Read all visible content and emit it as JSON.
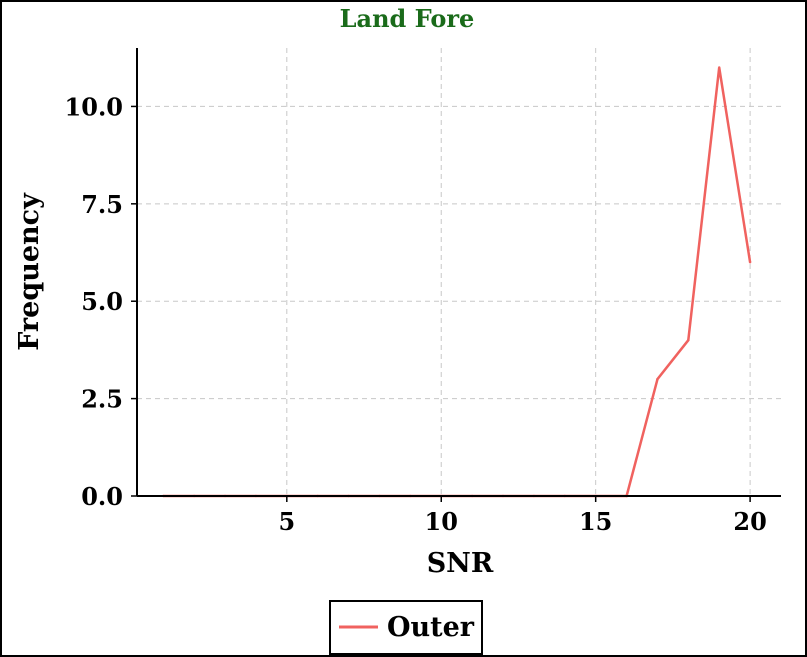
{
  "chart_data": {
    "type": "line",
    "title": "Land Fore",
    "xlabel": "SNR",
    "ylabel": "Frequency",
    "x": [
      1,
      2,
      3,
      4,
      5,
      6,
      7,
      8,
      9,
      10,
      11,
      12,
      13,
      14,
      15,
      16,
      17,
      18,
      19,
      20
    ],
    "series": [
      {
        "name": "Outer",
        "color": "#f0625f",
        "values": [
          0,
          0,
          0,
          0,
          0,
          0,
          0,
          0,
          0,
          0,
          0,
          0,
          0,
          0,
          0,
          0,
          3,
          4,
          11,
          6
        ]
      }
    ],
    "xlim": [
      0.15,
      21.0
    ],
    "ylim": [
      0,
      11.5
    ],
    "xticks": [
      5,
      10,
      15,
      20
    ],
    "yticks": [
      0,
      2.5,
      5,
      7.5,
      10
    ],
    "xtick_labels": [
      "5",
      "10",
      "15",
      "20"
    ],
    "ytick_labels": [
      "0.0",
      "2.5",
      "5.0",
      "7.5",
      "10.0"
    ],
    "grid": true,
    "legend_position": "bottom-center",
    "title_color": "#1a6b1a"
  }
}
